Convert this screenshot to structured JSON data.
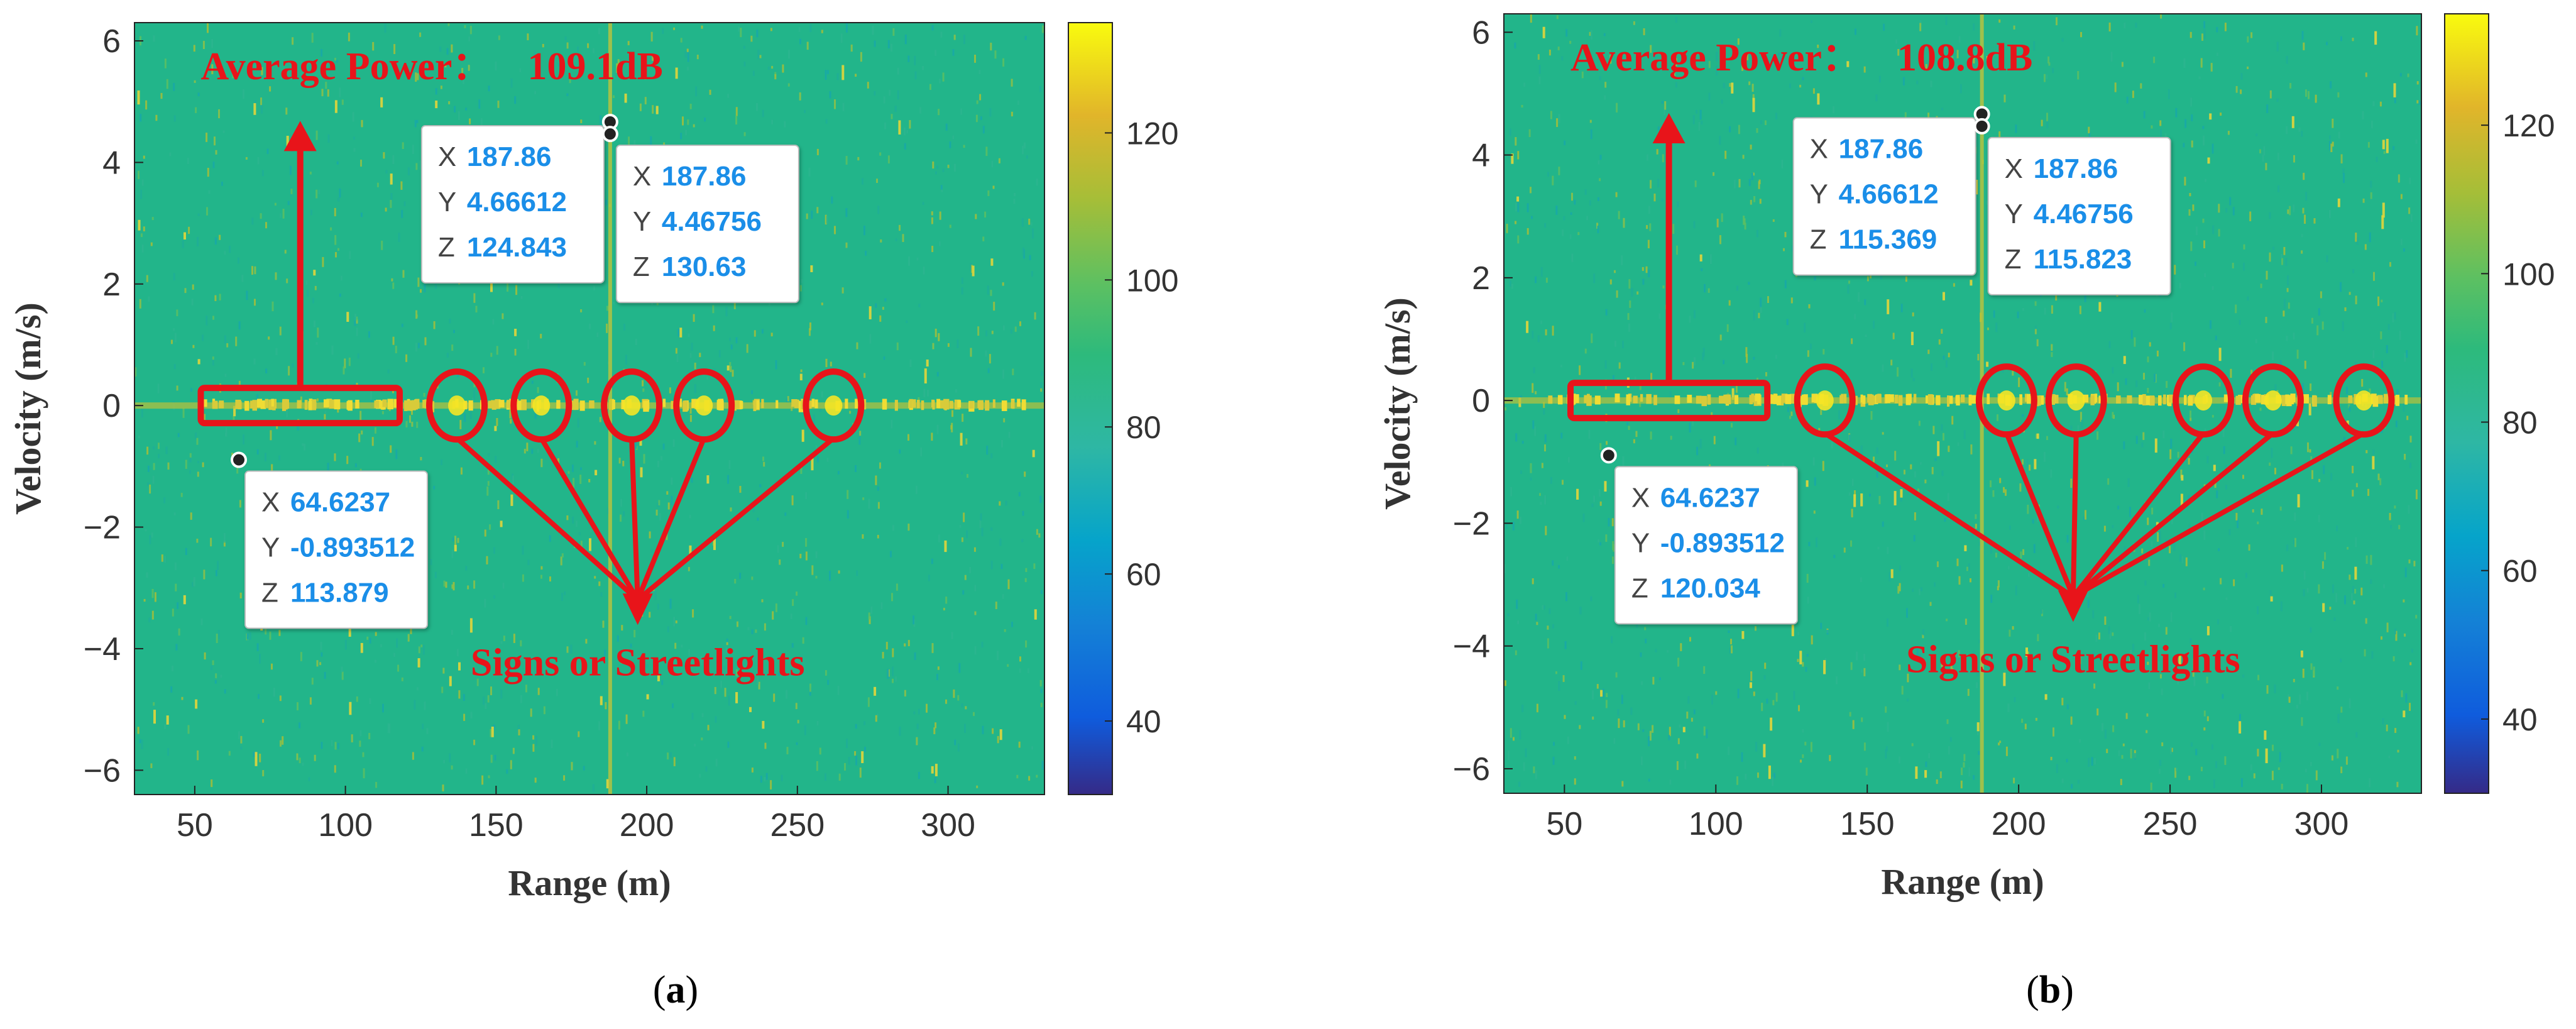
{
  "chart_data": [
    {
      "type": "heatmap",
      "panel_label": "a",
      "title": "",
      "xlabel": "Range (m)",
      "ylabel": "Velocity (m/s)",
      "xlim": [
        30,
        332
      ],
      "ylim": [
        -6.4,
        6.3
      ],
      "xticks": [
        50,
        100,
        150,
        200,
        250,
        300
      ],
      "yticks": [
        -6,
        -4,
        -2,
        0,
        2,
        4,
        6
      ],
      "colorbar": {
        "range": [
          30,
          135
        ],
        "ticks": [
          40,
          60,
          80,
          100,
          120
        ]
      },
      "stationary_line_velocity": 0,
      "bright_columns_range": [
        187.86
      ],
      "annotation_power": {
        "label": "Average Power：",
        "value": "109.1dB",
        "rect_range": [
          52,
          118
        ],
        "arrow_to_velocity": 4.6
      },
      "annotation_targets": {
        "label": "Signs or Streetlights",
        "ranges": [
          137,
          165,
          195,
          219,
          262
        ],
        "converge": [
          197,
          -3.3
        ]
      },
      "datatips": [
        {
          "x": 187.86,
          "y": 4.66612,
          "z": 124.843,
          "x_text": "187.86",
          "y_text": "4.66612",
          "z_text": "124.843",
          "box": "upper-left"
        },
        {
          "x": 187.86,
          "y": 4.46756,
          "z": 130.63,
          "x_text": "187.86",
          "y_text": "4.46756",
          "z_text": "130.63",
          "box": "lower-right"
        },
        {
          "x": 64.6237,
          "y": -0.893512,
          "z": 113.879,
          "x_text": "64.6237",
          "y_text": "-0.893512",
          "z_text": "113.879",
          "box": "lower-right"
        }
      ]
    },
    {
      "type": "heatmap",
      "panel_label": "b",
      "title": "",
      "xlabel": "Range (m)",
      "ylabel": "Velocity (m/s)",
      "xlim": [
        30,
        333
      ],
      "ylim": [
        -6.4,
        6.3
      ],
      "xticks": [
        50,
        100,
        150,
        200,
        250,
        300
      ],
      "yticks": [
        -6,
        -4,
        -2,
        0,
        2,
        4,
        6
      ],
      "colorbar": {
        "range": [
          30,
          135
        ],
        "ticks": [
          40,
          60,
          80,
          100,
          120
        ]
      },
      "stationary_line_velocity": 0,
      "bright_columns_range": [
        187.86
      ],
      "annotation_power": {
        "label": "Average Power：",
        "value": "108.8dB",
        "rect_range": [
          52,
          117
        ],
        "arrow_to_velocity": 4.6
      },
      "annotation_targets": {
        "label": "Signs or Streetlights",
        "ranges": [
          136,
          196,
          219,
          261,
          284,
          314
        ],
        "converge": [
          218,
          -3.3
        ]
      },
      "datatips": [
        {
          "x": 187.86,
          "y": 4.66612,
          "z": 115.369,
          "x_text": "187.86",
          "y_text": "4.66612",
          "z_text": "115.369",
          "box": "upper-left"
        },
        {
          "x": 187.86,
          "y": 4.46756,
          "z": 115.823,
          "x_text": "187.86",
          "y_text": "4.46756",
          "z_text": "115.823",
          "box": "lower-right"
        },
        {
          "x": 64.6237,
          "y": -0.893512,
          "z": 120.034,
          "x_text": "64.6237",
          "y_text": "-0.893512",
          "z_text": "120.034",
          "box": "lower-right"
        }
      ]
    }
  ],
  "datatip_keys": [
    "X",
    "Y",
    "Z"
  ],
  "colors": {
    "annotation": "#e8141a",
    "datatip_value": "#1a8ee8",
    "heat_base": "#22b58a",
    "heat_hot": "#f5e625"
  }
}
